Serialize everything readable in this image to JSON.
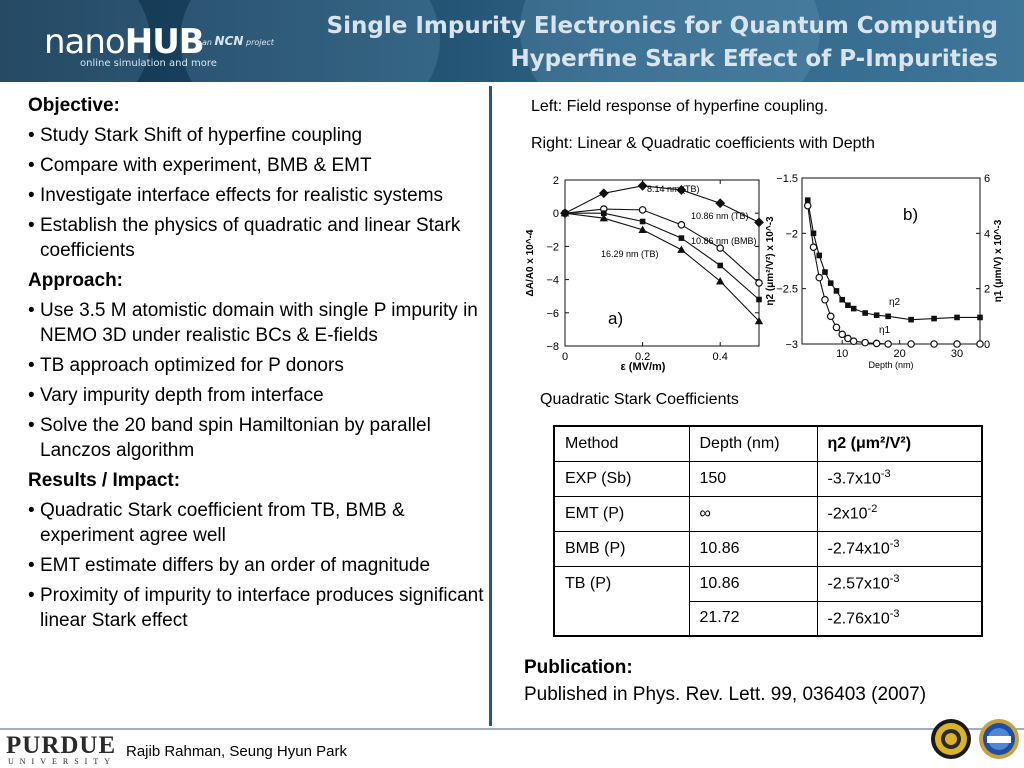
{
  "header": {
    "logo_main": "nano",
    "logo_bold": "HUB",
    "logo_tagline": "online simulation and more",
    "partner_prefix": "an",
    "partner_name": "NCN",
    "partner_suffix": "project",
    "title_line1": "Single Impurity Electronics for Quantum Computing",
    "title_line2": "Hyperfine Stark Effect of P-Impurities"
  },
  "left": {
    "objective_heading": "Objective:",
    "objective_items": [
      "Study Stark Shift of hyperfine coupling",
      "Compare with experiment, BMB & EMT",
      "Investigate interface effects for realistic systems",
      "Establish the physics of quadratic and linear Stark coefficients"
    ],
    "approach_heading": "Approach:",
    "approach_items": [
      "Use 3.5 M atomistic domain with single P impurity in NEMO 3D under realistic BCs & E-fields",
      "TB approach optimized for P donors",
      "Vary impurity depth from interface",
      "Solve the 20 band spin Hamiltonian by parallel Lanczos algorithm"
    ],
    "results_heading": "Results / Impact:",
    "results_items": [
      "Quadratic Stark coefficient from TB, BMB & experiment agree well",
      "EMT estimate differs by an order of magnitude",
      "Proximity of impurity to interface produces significant linear Stark effect"
    ]
  },
  "right": {
    "caption_left": "Left: Field response of hyperfine coupling.",
    "caption_right": "Right: Linear & Quadratic coefficients with Depth",
    "table_caption": "Quadratic Stark Coefficients"
  },
  "chart_data": [
    {
      "type": "line",
      "panel_label": "a)",
      "xlabel": "ε (MV/m)",
      "ylabel": "ΔA/A0 x 10^-4",
      "xlim": [
        0,
        0.5
      ],
      "ylim": [
        -8,
        2
      ],
      "x_ticks": [
        "0",
        "0.2",
        "0.4"
      ],
      "y_ticks": [
        "2",
        "0",
        "−2",
        "−4",
        "−6",
        "−8"
      ],
      "x": [
        0,
        0.1,
        0.2,
        0.3,
        0.4,
        0.5
      ],
      "series": [
        {
          "name": "8.14 nm (TB)",
          "marker": "diamond",
          "values": [
            0,
            1.2,
            1.65,
            1.4,
            0.6,
            -0.55
          ]
        },
        {
          "name": "10.86 nm (TB)",
          "marker": "circle",
          "values": [
            0,
            0.25,
            0.2,
            -0.7,
            -2.1,
            -4.2
          ]
        },
        {
          "name": "10.86 nm (BMB)",
          "marker": "square",
          "values": [
            0,
            0,
            -0.5,
            -1.5,
            -3.15,
            -5.2
          ]
        },
        {
          "name": "16.29 nm (TB)",
          "marker": "triangle",
          "values": [
            0,
            -0.3,
            -1,
            -2.2,
            -4.1,
            -6.5
          ]
        }
      ]
    },
    {
      "type": "line",
      "panel_label": "b)",
      "xlabel": "Depth (nm)",
      "ylabel_left": "η2 (μm²/V²) x 10^-3",
      "ylabel_right": "η1 (μm/V) x 10^-3",
      "xlim": [
        3,
        34
      ],
      "ylim_left": [
        -3,
        -1.5
      ],
      "ylim_right": [
        0,
        6
      ],
      "x_ticks": [
        "10",
        "20",
        "30"
      ],
      "y_ticks_left": [
        "−1.5",
        "−2",
        "−2.5",
        "−3"
      ],
      "y_ticks_right": [
        "6",
        "4",
        "2",
        "0"
      ],
      "series": [
        {
          "name": "η2",
          "marker": "square",
          "axis": "left",
          "x": [
            4,
            5,
            6,
            7,
            8,
            9,
            10,
            11,
            12,
            14,
            16,
            18,
            22,
            26,
            30,
            34
          ],
          "values": [
            -1.7,
            -2.0,
            -2.2,
            -2.35,
            -2.45,
            -2.52,
            -2.6,
            -2.65,
            -2.68,
            -2.72,
            -2.74,
            -2.75,
            -2.78,
            -2.77,
            -2.76,
            -2.76
          ]
        },
        {
          "name": "η1",
          "marker": "circle",
          "axis": "right",
          "x": [
            4,
            5,
            6,
            7,
            8,
            9,
            10,
            11,
            12,
            14,
            16,
            18,
            22,
            26,
            30,
            34
          ],
          "values": [
            5.0,
            3.5,
            2.4,
            1.6,
            1.0,
            0.6,
            0.35,
            0.2,
            0.1,
            0.05,
            0.02,
            0.0,
            0.0,
            0.0,
            0.0,
            0.0
          ]
        }
      ]
    }
  ],
  "table": {
    "headers": [
      "Method",
      "Depth (nm)",
      "η2 (μm²/V²)"
    ],
    "rows": [
      {
        "method": "EXP (Sb)",
        "depth": "150",
        "value": "-3.7x10",
        "exp": "-3"
      },
      {
        "method": "EMT (P)",
        "depth": "∞",
        "value": "-2x10",
        "exp": "-2"
      },
      {
        "method": "BMB (P)",
        "depth": "10.86",
        "value": "-2.74x10",
        "exp": "-3"
      },
      {
        "method": "TB (P)",
        "depth": "10.86",
        "value": "-2.57x10",
        "exp": "-3"
      },
      {
        "method": "",
        "depth": "21.72",
        "value": "-2.76x10",
        "exp": "-3"
      }
    ]
  },
  "publication": {
    "heading": "Publication:",
    "text": "Published in Phys. Rev. Lett. 99, 036403 (2007)"
  },
  "footer": {
    "university": "PURDUE",
    "university_sub": "UNIVERSITY",
    "authors": "Rajib Rahman, Seung Hyun Park"
  },
  "colors": {
    "banner_dark": "#10314a",
    "banner_light": "#3f7699",
    "title_text": "#d9e4ee",
    "divider": "#2c5578"
  },
  "icons": [
    "nanohub-logo",
    "purdue-logo",
    "seal-icon",
    "nsf-icon"
  ]
}
